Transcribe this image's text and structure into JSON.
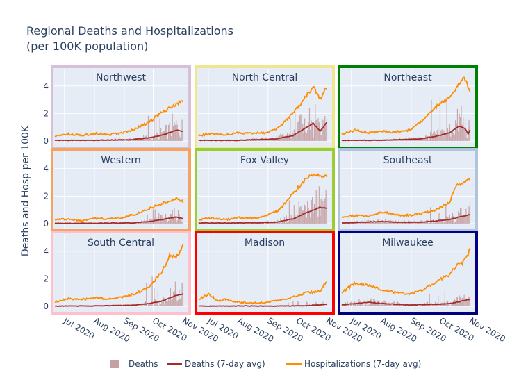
{
  "chart_data": {
    "type": "bar+line",
    "title": [
      "Regional Deaths and Hospitalizations",
      "(per 100K population)"
    ],
    "ylabel": "Deaths and Hosp per 100K",
    "ylim": [
      -0.3,
      5.2
    ],
    "yticks": [
      0,
      2,
      4
    ],
    "x_range": [
      "2020-06-21",
      "2020-11-05"
    ],
    "xticks": [
      {
        "label": "Jul 2020",
        "date": "2020-07-01"
      },
      {
        "label": "Aug 2020",
        "date": "2020-08-01"
      },
      {
        "label": "Sep 2020",
        "date": "2020-09-01"
      },
      {
        "label": "Oct 2020",
        "date": "2020-10-01"
      },
      {
        "label": "Nov 2020",
        "date": "2020-11-01"
      }
    ],
    "legend": [
      {
        "name": "Deaths",
        "type": "bar",
        "color": "#bc8f8f"
      },
      {
        "name": "Deaths (7-day avg)",
        "type": "line",
        "color": "#a52a2a"
      },
      {
        "name": "Hospitalizations (7-day avg)",
        "type": "line",
        "color": "#ff8c00"
      }
    ],
    "colors": {
      "deaths_bar": "#bc8f8f",
      "deaths_avg": "#a52a2a",
      "hosp_avg": "#ff8c00",
      "plot_bg": "#e5ecf6"
    },
    "panels": [
      {
        "name": "Northwest",
        "border": "#d8bfd8",
        "hosp": [
          [
            0,
            0.35
          ],
          [
            14,
            0.5
          ],
          [
            28,
            0.4
          ],
          [
            42,
            0.55
          ],
          [
            56,
            0.45
          ],
          [
            70,
            0.6
          ],
          [
            84,
            0.9
          ],
          [
            98,
            1.4
          ],
          [
            112,
            2.1
          ],
          [
            126,
            2.7
          ],
          [
            133,
            2.95
          ]
        ],
        "deaths_avg": [
          [
            0,
            0.05
          ],
          [
            40,
            0.05
          ],
          [
            80,
            0.1
          ],
          [
            100,
            0.25
          ],
          [
            115,
            0.5
          ],
          [
            126,
            0.8
          ],
          [
            133,
            0.7
          ]
        ],
        "deaths_max": 2.0
      },
      {
        "name": "North Central",
        "border": "#f0e68c",
        "hosp": [
          [
            0,
            0.4
          ],
          [
            14,
            0.55
          ],
          [
            28,
            0.45
          ],
          [
            42,
            0.6
          ],
          [
            56,
            0.55
          ],
          [
            70,
            0.6
          ],
          [
            84,
            1.0
          ],
          [
            98,
            2.0
          ],
          [
            112,
            3.3
          ],
          [
            119,
            3.9
          ],
          [
            126,
            3.1
          ],
          [
            133,
            3.9
          ]
        ],
        "deaths_avg": [
          [
            0,
            0.05
          ],
          [
            40,
            0.05
          ],
          [
            80,
            0.15
          ],
          [
            98,
            0.4
          ],
          [
            112,
            1.0
          ],
          [
            119,
            1.3
          ],
          [
            126,
            0.7
          ],
          [
            133,
            1.4
          ]
        ],
        "deaths_max": 2.4
      },
      {
        "name": "Northeast",
        "border": "#008000",
        "hosp": [
          [
            0,
            0.5
          ],
          [
            14,
            0.8
          ],
          [
            28,
            0.6
          ],
          [
            42,
            0.7
          ],
          [
            56,
            0.65
          ],
          [
            70,
            0.8
          ],
          [
            84,
            1.5
          ],
          [
            98,
            2.5
          ],
          [
            112,
            3.2
          ],
          [
            119,
            3.8
          ],
          [
            126,
            4.7
          ],
          [
            133,
            3.7
          ]
        ],
        "deaths_avg": [
          [
            0,
            0.05
          ],
          [
            40,
            0.05
          ],
          [
            80,
            0.15
          ],
          [
            98,
            0.35
          ],
          [
            112,
            0.6
          ],
          [
            122,
            1.1
          ],
          [
            128,
            0.9
          ],
          [
            131,
            0.5
          ],
          [
            133,
            0.8
          ]
        ],
        "deaths_max": 3.4
      },
      {
        "name": "Western",
        "border": "#f4a460",
        "hosp": [
          [
            0,
            0.3
          ],
          [
            14,
            0.35
          ],
          [
            28,
            0.2
          ],
          [
            42,
            0.4
          ],
          [
            56,
            0.35
          ],
          [
            70,
            0.45
          ],
          [
            84,
            0.7
          ],
          [
            98,
            1.1
          ],
          [
            112,
            1.5
          ],
          [
            126,
            1.85
          ],
          [
            133,
            1.6
          ]
        ],
        "deaths_avg": [
          [
            0,
            0.02
          ],
          [
            40,
            0.03
          ],
          [
            80,
            0.05
          ],
          [
            98,
            0.15
          ],
          [
            112,
            0.3
          ],
          [
            126,
            0.5
          ],
          [
            133,
            0.35
          ]
        ],
        "deaths_max": 1.3
      },
      {
        "name": "Fox Valley",
        "border": "#9acd32",
        "hosp": [
          [
            0,
            0.3
          ],
          [
            14,
            0.4
          ],
          [
            28,
            0.3
          ],
          [
            42,
            0.45
          ],
          [
            56,
            0.4
          ],
          [
            70,
            0.55
          ],
          [
            84,
            1.0
          ],
          [
            98,
            2.2
          ],
          [
            112,
            3.3
          ],
          [
            119,
            3.6
          ],
          [
            126,
            3.45
          ],
          [
            133,
            3.55
          ]
        ],
        "deaths_avg": [
          [
            0,
            0.05
          ],
          [
            40,
            0.05
          ],
          [
            80,
            0.1
          ],
          [
            98,
            0.35
          ],
          [
            112,
            0.8
          ],
          [
            126,
            1.2
          ],
          [
            133,
            1.1
          ]
        ],
        "deaths_max": 1.7
      },
      {
        "name": "Southeast",
        "border": "#b0c4de",
        "hosp": [
          [
            0,
            0.45
          ],
          [
            14,
            0.6
          ],
          [
            28,
            0.55
          ],
          [
            42,
            0.85
          ],
          [
            56,
            0.65
          ],
          [
            70,
            0.6
          ],
          [
            84,
            0.75
          ],
          [
            98,
            1.0
          ],
          [
            112,
            1.6
          ],
          [
            119,
            2.8
          ],
          [
            126,
            3.0
          ],
          [
            133,
            3.3
          ]
        ],
        "deaths_avg": [
          [
            0,
            0.05
          ],
          [
            20,
            0.1
          ],
          [
            40,
            0.15
          ],
          [
            60,
            0.1
          ],
          [
            80,
            0.1
          ],
          [
            98,
            0.2
          ],
          [
            112,
            0.3
          ],
          [
            126,
            0.55
          ],
          [
            133,
            0.65
          ]
        ],
        "deaths_max": 1.5
      },
      {
        "name": "South Central",
        "border": "#ffc0cb",
        "hosp": [
          [
            0,
            0.3
          ],
          [
            14,
            0.55
          ],
          [
            28,
            0.5
          ],
          [
            42,
            0.6
          ],
          [
            56,
            0.55
          ],
          [
            70,
            0.65
          ],
          [
            84,
            0.95
          ],
          [
            98,
            1.4
          ],
          [
            112,
            2.6
          ],
          [
            119,
            3.7
          ],
          [
            126,
            3.5
          ],
          [
            133,
            4.4
          ]
        ],
        "deaths_avg": [
          [
            0,
            0.02
          ],
          [
            40,
            0.03
          ],
          [
            80,
            0.08
          ],
          [
            98,
            0.2
          ],
          [
            112,
            0.4
          ],
          [
            126,
            0.8
          ],
          [
            133,
            0.9
          ]
        ],
        "deaths_max": 2.2
      },
      {
        "name": "Madison",
        "border": "#ff0000",
        "hosp": [
          [
            0,
            0.5
          ],
          [
            10,
            0.9
          ],
          [
            20,
            0.4
          ],
          [
            28,
            0.5
          ],
          [
            42,
            0.3
          ],
          [
            56,
            0.25
          ],
          [
            70,
            0.3
          ],
          [
            84,
            0.45
          ],
          [
            98,
            0.7
          ],
          [
            112,
            1.0
          ],
          [
            126,
            1.1
          ],
          [
            133,
            1.8
          ]
        ],
        "deaths_avg": [
          [
            0,
            0.02
          ],
          [
            40,
            0.03
          ],
          [
            80,
            0.02
          ],
          [
            112,
            0.05
          ],
          [
            126,
            0.1
          ],
          [
            133,
            0.15
          ]
        ],
        "deaths_max": 0.5
      },
      {
        "name": "Milwaukee",
        "border": "#000080",
        "hosp": [
          [
            0,
            1.0
          ],
          [
            14,
            1.7
          ],
          [
            28,
            1.5
          ],
          [
            42,
            1.2
          ],
          [
            56,
            1.0
          ],
          [
            70,
            0.9
          ],
          [
            84,
            1.2
          ],
          [
            98,
            1.8
          ],
          [
            112,
            2.3
          ],
          [
            119,
            3.0
          ],
          [
            126,
            3.2
          ],
          [
            133,
            4.1
          ]
        ],
        "deaths_avg": [
          [
            0,
            0.1
          ],
          [
            14,
            0.2
          ],
          [
            28,
            0.3
          ],
          [
            42,
            0.2
          ],
          [
            70,
            0.1
          ],
          [
            98,
            0.15
          ],
          [
            112,
            0.2
          ],
          [
            126,
            0.4
          ],
          [
            133,
            0.5
          ]
        ],
        "deaths_max": 1.2
      }
    ]
  }
}
